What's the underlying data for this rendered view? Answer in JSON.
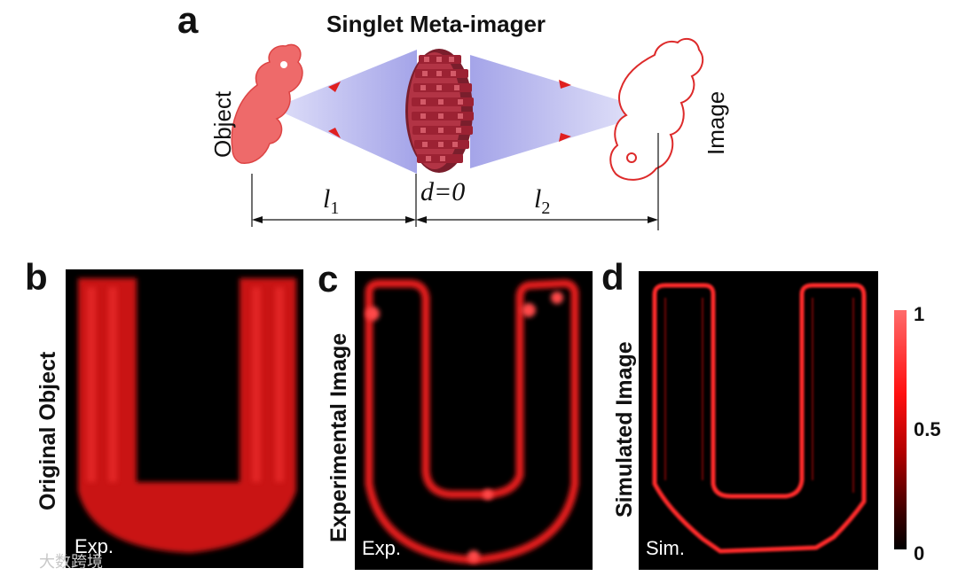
{
  "panel_a": {
    "letter": "a",
    "title": "Singlet Meta-imager",
    "object_label": "Object",
    "image_label": "Image",
    "l1_base": "l",
    "l1_sub": "1",
    "d_label": "d=0",
    "l2_base": "l",
    "l2_sub": "2"
  },
  "panel_b": {
    "letter": "b",
    "side_label": "Original Object",
    "tag": "Exp."
  },
  "panel_c": {
    "letter": "c",
    "side_label": "Experimental Image",
    "tag": "Exp."
  },
  "panel_d": {
    "letter": "d",
    "side_label": "Simulated Image",
    "tag": "Sim."
  },
  "colorbar": {
    "max": "1",
    "mid": "0.5",
    "min": "0"
  },
  "watermark": "大数跨境",
  "colors": {
    "red": "#ff2020",
    "cone": "#b8b8f0",
    "panel_bg": "#000000"
  }
}
